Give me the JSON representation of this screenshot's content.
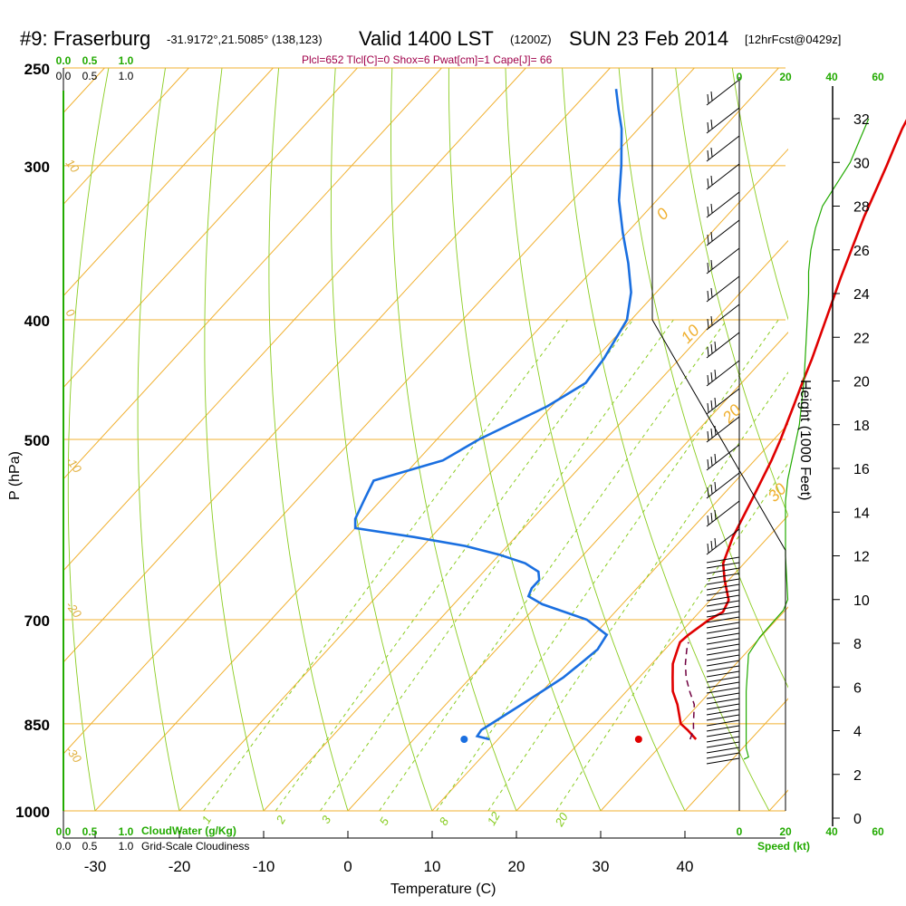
{
  "header": {
    "station": "#9: Fraserburg",
    "coords": "-31.9172°,21.5085° (138,123)",
    "valid": "Valid 1400 LST",
    "zulu": "(1200Z)",
    "date": "SUN 23 Feb 2014",
    "forecast": "[12hrFcst@0429z]",
    "params": "Plcl=652 Tlcl[C]=0 Shox=6 Pwat[cm]=1 Cape[J]= 66"
  },
  "labels": {
    "pressure_axis": "P (hPa)",
    "temp_axis": "Temperature (C)",
    "height_axis": "Height (1000 Feet)",
    "cloudwater": "CloudWater (g/Kg)",
    "cloudiness": "Grid-Scale Cloudiness",
    "speed": "Speed (kt)"
  },
  "colors": {
    "temperature": "#e00000",
    "dewpoint": "#1a6fe0",
    "parcel": "#700040",
    "isotherm": "#f0b030",
    "dry_adiabat": "#8acc20",
    "mixing_ratio": "#8acc20",
    "wind_speed": "#22aa00",
    "params": "#a0004a"
  },
  "chart_data": {
    "type": "skew-t",
    "ylabel": "P (hPa)",
    "xlabel": "Temperature (C)",
    "pressure_levels": [
      250,
      300,
      400,
      500,
      700,
      850,
      1000
    ],
    "pressure_labels": [
      "250",
      "300",
      "400",
      "500",
      "700",
      "850",
      "1000"
    ],
    "temperature_ticks": [
      -30,
      -20,
      -10,
      0,
      10,
      20,
      30,
      40
    ],
    "temperature_tick_labels": [
      "-30",
      "-20",
      "-10",
      "0",
      "10",
      "20",
      "30",
      "40"
    ],
    "height_ticks": [
      0,
      2,
      4,
      6,
      8,
      10,
      12,
      14,
      16,
      18,
      20,
      22,
      24,
      26,
      28,
      30,
      32
    ],
    "height_tick_labels": [
      "0",
      "2",
      "4",
      "6",
      "8",
      "10",
      "12",
      "14",
      "16",
      "18",
      "20",
      "22",
      "24",
      "26",
      "28",
      "30",
      "32"
    ],
    "height_axis_label": "Height (1000 Feet)",
    "cloud_scale_top": [
      "0.0",
      "0.5",
      "1.0"
    ],
    "cloud_scale_green": [
      "0.0",
      "0.5",
      "1.0"
    ],
    "speed_ticks": [
      0,
      20,
      40,
      60
    ],
    "speed_tick_labels": [
      "0",
      "20",
      "40",
      "60"
    ],
    "isotherm_labels": [
      "0",
      "10",
      "20",
      "30"
    ],
    "isotherm_label_values": [
      0,
      10,
      20,
      30
    ],
    "dry_adiabat_labels": [
      "10",
      "0",
      "-10",
      "-20",
      "-30"
    ],
    "mixing_ratio_labels": [
      "1",
      "2",
      "3",
      "5",
      "8",
      "12",
      "20"
    ],
    "mixing_ratio_values": [
      1,
      2,
      3,
      5,
      8,
      12,
      20
    ],
    "series": [
      {
        "name": "Temperature",
        "p": [
          875,
          860,
          850,
          820,
          800,
          780,
          760,
          740,
          730,
          720,
          700,
          690,
          675,
          650,
          630,
          600,
          560,
          520,
          500,
          470,
          450,
          430,
          400,
          370,
          350,
          330,
          310,
          300,
          290,
          280,
          270,
          260
        ],
        "t": [
          33.5,
          31.5,
          30.0,
          27.5,
          25.5,
          24.0,
          22.5,
          21.5,
          21.0,
          21.2,
          22.0,
          22.8,
          22.2,
          19.5,
          17.5,
          15.8,
          14.0,
          12.0,
          10.8,
          8.7,
          7.2,
          5.7,
          3.1,
          0.3,
          -1.6,
          -3.6,
          -5.5,
          -6.5,
          -7.6,
          -8.7,
          -9.6,
          -10.6
        ]
      },
      {
        "name": "Dewpoint",
        "p": [
          875,
          870,
          860,
          850,
          820,
          800,
          780,
          760,
          740,
          720,
          700,
          680,
          670,
          660,
          650,
          640,
          630,
          620,
          610,
          600,
          590,
          580,
          560,
          540,
          520,
          500,
          470,
          450,
          430,
          400,
          380,
          360,
          340,
          320,
          300,
          280,
          270,
          260
        ],
        "t": [
          9.0,
          7.2,
          7.0,
          7.5,
          9.0,
          10.0,
          11.0,
          11.5,
          12.0,
          11.5,
          7.5,
          0.5,
          -2.0,
          -2.5,
          -2.5,
          -3.5,
          -6.0,
          -10.0,
          -15.0,
          -22.0,
          -30.0,
          -31.0,
          -32.0,
          -33.0,
          -27.0,
          -25.0,
          -20.5,
          -18.5,
          -19.0,
          -20.5,
          -23.0,
          -26.5,
          -30.5,
          -34.5,
          -38.0,
          -42.0,
          -44.5,
          -47.0
        ]
      },
      {
        "name": "Parcel",
        "p": [
          875,
          860,
          850,
          820,
          800,
          780,
          760,
          740,
          730
        ],
        "t": [
          32.8,
          32.2,
          31.5,
          29.5,
          27.5,
          25.6,
          24.0,
          22.6,
          22.0
        ]
      }
    ],
    "surface_points": [
      {
        "name": "temperature",
        "t": 34.5,
        "p": 875
      },
      {
        "name": "dewpoint",
        "t": 13.8,
        "p": 875
      }
    ],
    "height_profile_kft": [
      2.7,
      2.8,
      3.2,
      5.8,
      7.5,
      8.3,
      8.9,
      9.5,
      10.0,
      12.0,
      13.8,
      14.5,
      15.5,
      17.0,
      18.0,
      20.0,
      22.0,
      24.0,
      25.0,
      26.0,
      27.0,
      28.0,
      29.0,
      30.0,
      31.0,
      32.0
    ],
    "wind_speed_profile_kt": [
      2,
      4,
      3,
      3,
      4,
      9,
      14,
      19,
      21,
      20,
      20,
      20,
      21,
      24,
      26,
      28,
      29,
      30,
      30,
      31,
      33,
      36,
      42,
      48,
      52,
      56
    ]
  }
}
